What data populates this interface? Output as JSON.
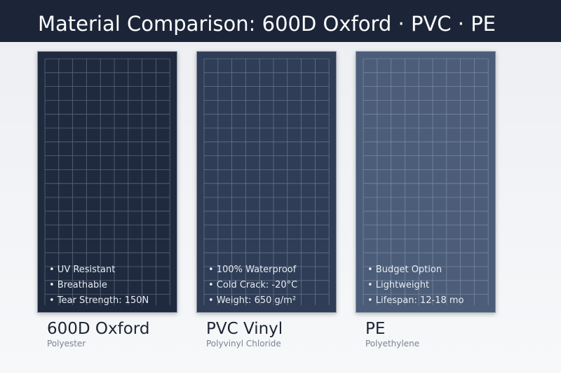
{
  "header": {
    "title": "Material Comparison: 600D Oxford · PVC · PE"
  },
  "cards": [
    {
      "features": [
        "• UV Resistant",
        "• Breathable",
        "• Tear Strength: 150N"
      ],
      "name": "600D Oxford",
      "subtitle": "Polyester"
    },
    {
      "features": [
        "• 100% Waterproof",
        "• Cold Crack: -20°C",
        "• Weight: 650 g/m²"
      ],
      "name": "PVC Vinyl",
      "subtitle": "Polyvinyl Chloride"
    },
    {
      "features": [
        "• Budget Option",
        "• Lightweight",
        "• Lifespan: 12-18 mo"
      ],
      "name": "PE",
      "subtitle": "Polyethylene"
    }
  ]
}
